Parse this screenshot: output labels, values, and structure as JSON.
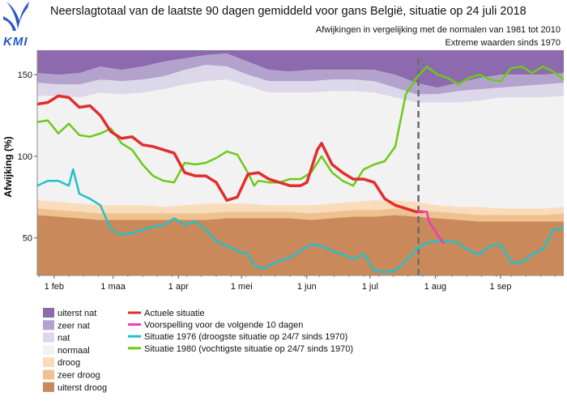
{
  "logo": {
    "text": "KMI"
  },
  "chart_data": {
    "type": "line",
    "title": "Neerslagtotaal van de laatste 90 dagen gemiddeld voor gans België, situatie op 24 juli 2018",
    "subtitle_1": "Afwijkingen in vergelijking met de normalen van 1981 tot 2010",
    "subtitle_2": "Extreme waarden sinds 1970",
    "ylabel": "Afwijking (%)",
    "xlabel": "",
    "ylim": [
      27,
      165
    ],
    "xlim": [
      0,
      250
    ],
    "grid": false,
    "legend_position": "bottom-left",
    "x_unit": "days since 24 January (day of year minus 24)",
    "x_ticks": [
      {
        "x": 8,
        "label": "1 feb"
      },
      {
        "x": 36,
        "label": "1 maa"
      },
      {
        "x": 67,
        "label": "1 apr"
      },
      {
        "x": 97,
        "label": "1 mei"
      },
      {
        "x": 128,
        "label": "1 jun"
      },
      {
        "x": 158,
        "label": "1 jul"
      },
      {
        "x": 189,
        "label": "1 aug"
      },
      {
        "x": 220,
        "label": "1 sep"
      }
    ],
    "y_ticks": [
      50,
      100,
      150
    ],
    "current_date_x": 181,
    "bands": [
      {
        "name": "uiterst nat",
        "color": "#8d6aad"
      },
      {
        "name": "zeer nat",
        "color": "#b3a3cc"
      },
      {
        "name": "nat",
        "color": "#dcd8ea"
      },
      {
        "name": "normaal",
        "color": "#f2f2f2"
      },
      {
        "name": "droog",
        "color": "#f8dcbb"
      },
      {
        "name": "zeer droog",
        "color": "#eec18f"
      },
      {
        "name": "uiterst droog",
        "color": "#c9895a"
      }
    ],
    "band_boundaries": {
      "x": [
        0,
        10,
        20,
        30,
        40,
        50,
        60,
        70,
        80,
        90,
        100,
        110,
        120,
        130,
        140,
        150,
        160,
        170,
        180,
        190,
        200,
        210,
        220,
        230,
        240,
        250
      ],
      "uiterst_nat_top": [
        165,
        165,
        165,
        165,
        165,
        165,
        165,
        165,
        165,
        165,
        165,
        165,
        165,
        165,
        165,
        165,
        165,
        165,
        165,
        165,
        165,
        165,
        165,
        165,
        165,
        165
      ],
      "zeer_nat_top": [
        151,
        150,
        151,
        155,
        153,
        155,
        158,
        160,
        162,
        163,
        158,
        153,
        152,
        153,
        153,
        153,
        153,
        150,
        145,
        142,
        145,
        148,
        150,
        150,
        150,
        151
      ],
      "nat_top": [
        145,
        144,
        144,
        147,
        146,
        147,
        149,
        153,
        156,
        155,
        150,
        146,
        146,
        146,
        147,
        147,
        146,
        142,
        138,
        138,
        140,
        141,
        142,
        143,
        144,
        145
      ],
      "normaal_top": [
        137,
        137,
        136,
        139,
        138,
        139,
        141,
        144,
        146,
        147,
        143,
        139,
        139,
        139,
        140,
        140,
        139,
        136,
        133,
        133,
        133,
        134,
        136,
        136,
        136,
        137
      ],
      "droog_top": [
        73,
        72,
        71,
        70,
        70,
        70,
        69,
        70,
        71,
        71,
        71,
        70,
        70,
        70,
        71,
        72,
        73,
        73,
        72,
        70,
        69,
        69,
        68,
        68,
        68,
        69
      ],
      "zeer_droog_top": [
        68,
        67,
        66,
        65,
        65,
        65,
        65,
        65,
        65,
        66,
        66,
        66,
        66,
        65,
        66,
        67,
        67,
        68,
        67,
        66,
        65,
        64,
        64,
        64,
        64,
        65
      ],
      "uiterst_droog_top": [
        64,
        63,
        62,
        61,
        61,
        61,
        61,
        61,
        61,
        62,
        62,
        62,
        62,
        61,
        62,
        63,
        63,
        64,
        63,
        62,
        61,
        60,
        60,
        60,
        60,
        60
      ]
    },
    "series": [
      {
        "name": "Actuele situatie",
        "color": "#e32d2d",
        "x": [
          0,
          5,
          10,
          15,
          20,
          25,
          30,
          35,
          40,
          45,
          50,
          55,
          60,
          65,
          70,
          75,
          80,
          85,
          90,
          95,
          100,
          105,
          110,
          115,
          120,
          125,
          128,
          130,
          133,
          135,
          140,
          145,
          150,
          155,
          160,
          165,
          170,
          175,
          180,
          183
        ],
        "y": [
          132,
          133,
          137,
          136,
          130,
          131,
          125,
          115,
          111,
          112,
          107,
          106,
          104,
          102,
          90,
          88,
          88,
          84,
          73,
          75,
          89,
          90,
          86,
          84,
          82,
          82,
          84,
          92,
          104,
          108,
          95,
          90,
          86,
          86,
          84,
          74,
          70,
          68,
          66,
          66
        ]
      },
      {
        "name": "Voorspelling voor de volgende 10 dagen",
        "color": "#e83db8",
        "x": [
          181,
          183,
          185,
          186,
          188,
          190,
          192,
          193
        ],
        "y": [
          66,
          66,
          66,
          60,
          56,
          52,
          48,
          47
        ]
      },
      {
        "name": "Situatie 1976 (droogste situatie op 24/7 sinds 1970)",
        "color": "#21c1c8",
        "x": [
          0,
          5,
          10,
          15,
          17,
          20,
          25,
          30,
          35,
          40,
          45,
          50,
          55,
          60,
          65,
          70,
          75,
          80,
          85,
          90,
          95,
          100,
          103,
          108,
          110,
          115,
          120,
          125,
          130,
          135,
          140,
          145,
          150,
          155,
          160,
          165,
          170,
          175,
          180,
          185,
          190,
          195,
          200,
          205,
          210,
          215,
          220,
          225,
          230,
          235,
          240,
          245,
          250
        ],
        "y": [
          82,
          85,
          85,
          82,
          92,
          77,
          74,
          70,
          55,
          52,
          53,
          55,
          57,
          58,
          62,
          58,
          60,
          55,
          48,
          45,
          42,
          40,
          33,
          31,
          33,
          36,
          38,
          42,
          46,
          45,
          42,
          40,
          37,
          40,
          30,
          29,
          30,
          36,
          43,
          47,
          48,
          48,
          47,
          42,
          40,
          45,
          46,
          35,
          35,
          40,
          43,
          55,
          56
        ]
      },
      {
        "name": "Situatie 1980 (vochtigste situatie op 24/7 sinds 1970)",
        "color": "#6cca18",
        "x": [
          0,
          5,
          10,
          15,
          20,
          25,
          30,
          35,
          40,
          45,
          50,
          55,
          60,
          65,
          70,
          75,
          80,
          85,
          90,
          95,
          100,
          103,
          105,
          110,
          115,
          120,
          125,
          130,
          135,
          140,
          145,
          150,
          155,
          160,
          165,
          170,
          175,
          180,
          185,
          190,
          195,
          200,
          205,
          210,
          215,
          220,
          225,
          230,
          235,
          240,
          245,
          250
        ],
        "y": [
          121,
          122,
          114,
          120,
          113,
          112,
          114,
          117,
          108,
          104,
          95,
          88,
          85,
          84,
          96,
          95,
          96,
          99,
          103,
          101,
          90,
          82,
          85,
          84,
          84,
          86,
          86,
          90,
          100,
          90,
          85,
          82,
          92,
          95,
          97,
          106,
          138,
          148,
          155,
          150,
          148,
          144,
          148,
          150,
          147,
          146,
          154,
          155,
          151,
          155,
          152,
          147
        ]
      }
    ]
  }
}
